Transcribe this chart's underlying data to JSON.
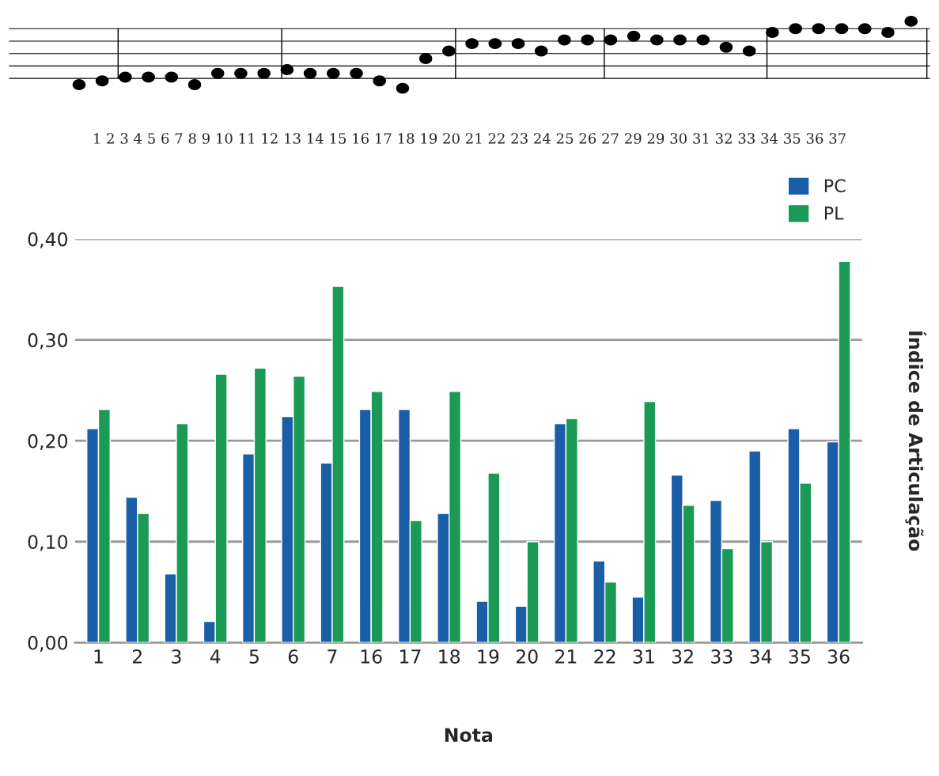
{
  "chart_data": {
    "type": "bar",
    "xlabel": "Nota",
    "y2label": "Índice de Articulação",
    "categories": [
      "1",
      "2",
      "3",
      "4",
      "5",
      "6",
      "7",
      "16",
      "17",
      "18",
      "19",
      "20",
      "21",
      "22",
      "31",
      "32",
      "33",
      "34",
      "35",
      "36"
    ],
    "series": [
      {
        "name": "PC",
        "color": "#1a5ea8",
        "values": [
          0.212,
          0.144,
          0.068,
          0.021,
          0.187,
          0.224,
          0.178,
          0.231,
          0.231,
          0.128,
          0.041,
          0.036,
          0.217,
          0.081,
          0.045,
          0.166,
          0.141,
          0.19,
          0.212,
          0.199
        ]
      },
      {
        "name": "PL",
        "color": "#1a9a55",
        "values": [
          0.231,
          0.128,
          0.217,
          0.266,
          0.272,
          0.264,
          0.353,
          0.249,
          0.121,
          0.249,
          0.168,
          0.1,
          0.222,
          0.06,
          0.239,
          0.136,
          0.093,
          0.1,
          0.158,
          0.378
        ]
      }
    ],
    "ylim": [
      0,
      0.4
    ],
    "yticks": [
      {
        "value": 0,
        "label": "0,00"
      },
      {
        "value": 0.1,
        "label": "0,10"
      },
      {
        "value": 0.2,
        "label": "0,20"
      },
      {
        "value": 0.3,
        "label": "0,30"
      },
      {
        "value": 0.4,
        "label": "0,40"
      }
    ],
    "grid": "y",
    "legend": "top right",
    "annotations": [
      "1 2 3 4 5 6 7 8 9 10 11 12 13 14 15 16 17 18 19 20 21 22 23 24 25 26 27 29 29 30 31 32 33 34 35 36 37"
    ]
  }
}
